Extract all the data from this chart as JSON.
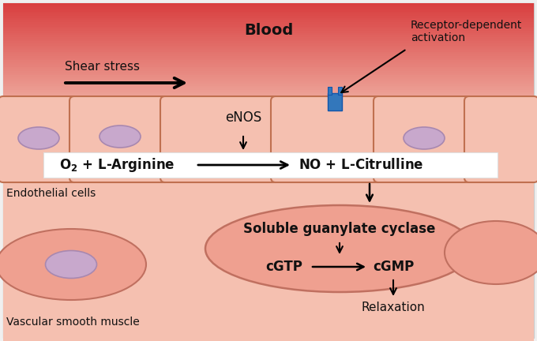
{
  "blood_label": "Blood",
  "endothelial_label": "Endothelial cells",
  "vascular_label": "Vascular smooth muscle",
  "shear_stress_label": "Shear stress",
  "receptor_label": "Receptor-dependent\nactivation",
  "enos_label": "eNOS",
  "reaction_left": "O₂ + L-Arginine",
  "reaction_right": "NO + L-Citrulline",
  "guanylate_label": "Soluble guanylate cyclase",
  "cgtp_label": "cGTP",
  "cgmp_label": "cGMP",
  "relaxation_label": "Relaxation",
  "blood_top_color": "#d94040",
  "blood_mid_color": "#e87070",
  "blood_bot_color": "#f5c0b0",
  "endothelial_bg": "#f5c8b8",
  "vascular_bg": "#f5c0b0",
  "cell_fill": "#f5c0b0",
  "cell_border": "#c07050",
  "cell_lw": 1.5,
  "nucleus_fill": "#c8a8cc",
  "nucleus_border": "#a888b0",
  "sm_fill": "#efa090",
  "sm_border": "#c07060",
  "white_box_fill": "#ffffff",
  "white_box_edge": "#e0e0e0",
  "receptor_fill": "#3377bb",
  "receptor_edge": "#1155aa",
  "arrow_color": "#111111",
  "text_color": "#111111",
  "border_color": "#cccccc"
}
